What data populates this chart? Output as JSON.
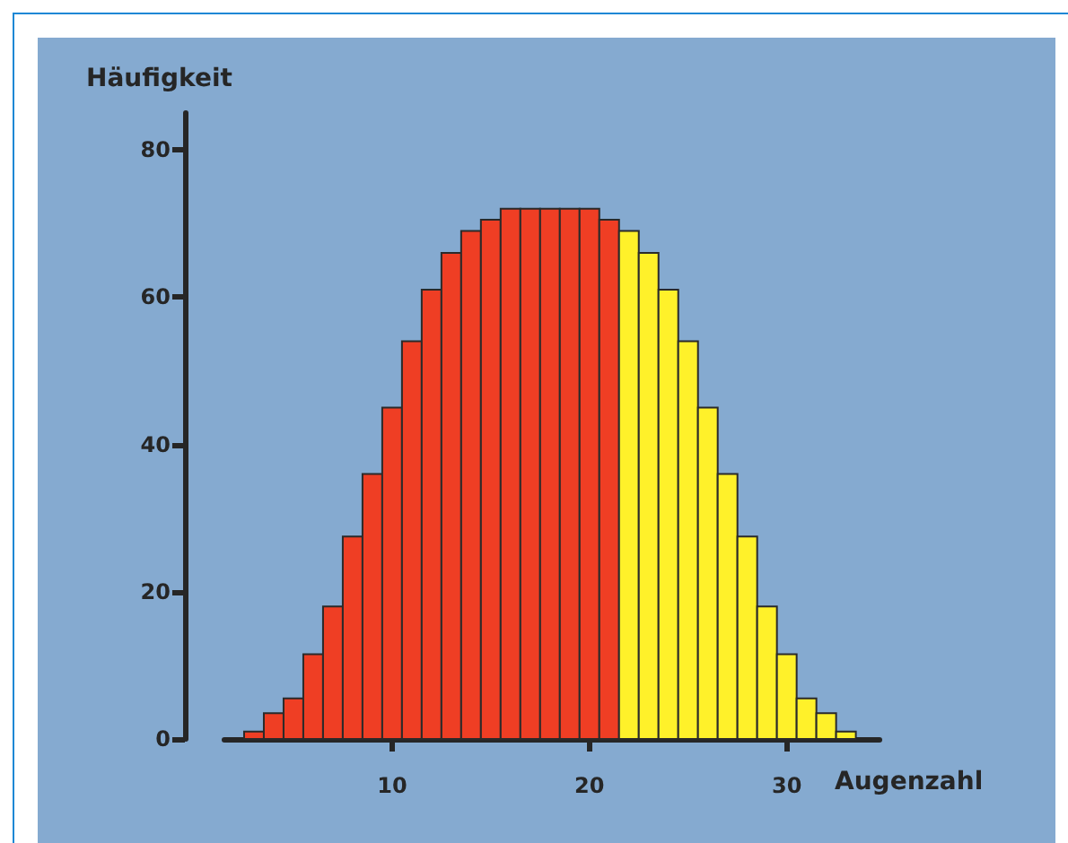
{
  "chart_data": {
    "type": "histogram",
    "xlabel": "Augenzahl",
    "ylabel": "Häufigkeit",
    "bins": [
      2.5,
      3.5,
      4.5,
      5.5,
      6.5,
      7.5,
      8.5,
      9.5,
      10.5,
      11.5,
      12.5,
      13.5,
      14.5,
      15.5,
      16.5,
      17.5,
      18.5,
      19.5,
      20.5,
      21.5,
      22.5,
      23.5,
      24.5,
      25.5,
      26.5,
      27.5,
      28.5,
      29.5,
      30.5,
      31.5,
      32.5,
      33.5
    ],
    "values": [
      1,
      3.5,
      5.5,
      11.5,
      18,
      27.5,
      36,
      45,
      54,
      61,
      66,
      69,
      70.5,
      72,
      72,
      72,
      72,
      72,
      70.5,
      69,
      66,
      61,
      54,
      45,
      36,
      27.5,
      18,
      11.5,
      5.5,
      3.5,
      1
    ],
    "colors": [
      "#ef3e24",
      "#ef3e24",
      "#ef3e24",
      "#ef3e24",
      "#ef3e24",
      "#ef3e24",
      "#ef3e24",
      "#ef3e24",
      "#ef3e24",
      "#ef3e24",
      "#ef3e24",
      "#ef3e24",
      "#ef3e24",
      "#ef3e24",
      "#ef3e24",
      "#ef3e24",
      "#ef3e24",
      "#ef3e24",
      "#ef3e24",
      "#fff12a",
      "#fff12a",
      "#fff12a",
      "#fff12a",
      "#fff12a",
      "#fff12a",
      "#fff12a",
      "#fff12a",
      "#fff12a",
      "#fff12a",
      "#fff12a",
      "#fff12a"
    ],
    "xlim": [
      1.5,
      34.7
    ],
    "xticks": [
      10,
      20,
      30
    ],
    "ylim": [
      0,
      85
    ],
    "yticks": [
      0,
      20,
      40,
      60,
      80
    ],
    "grid": false
  }
}
